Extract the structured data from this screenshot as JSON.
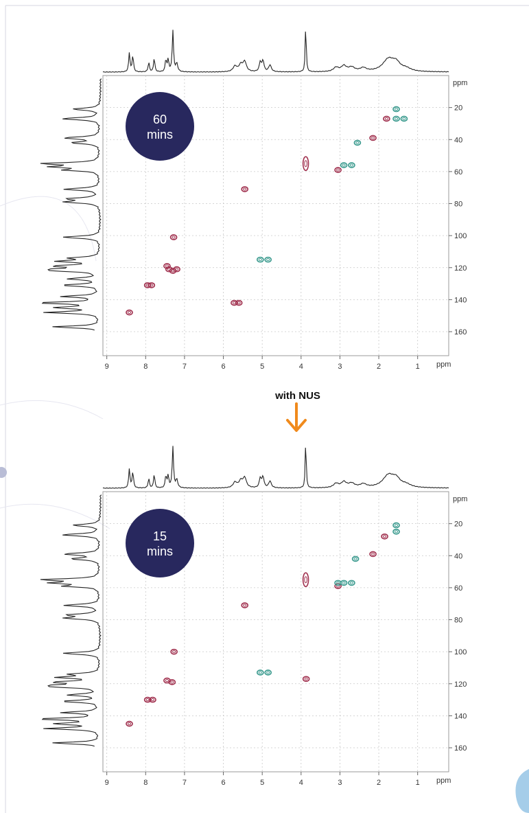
{
  "colors": {
    "badge": "#28285e",
    "negative_contour": "#a0304e",
    "positive_contour": "#3a9a8e",
    "arrow": "#f08a1c",
    "spectrum": "#222222",
    "grid": "#c8c8c8"
  },
  "connector": {
    "label": "with NUS",
    "icon": "arrow-down-icon"
  },
  "chart_data": [
    {
      "type": "scatter",
      "title": "",
      "badge": {
        "line1": "60",
        "line2": "mins"
      },
      "x_axis": {
        "unit": "ppm",
        "range": [
          9.1,
          0.2
        ],
        "reversed": true,
        "ticks": [
          "9",
          "8",
          "7",
          "6",
          "5",
          "4",
          "3",
          "2",
          "1"
        ]
      },
      "y_axis": {
        "unit": "ppm",
        "range": [
          0,
          175
        ],
        "ticks": [
          "20",
          "40",
          "60",
          "80",
          "100",
          "120",
          "140",
          "160"
        ]
      },
      "grid": true,
      "series": [
        {
          "phase": "negative",
          "points": [
            {
              "x": 8.42,
              "y": 148
            },
            {
              "x": 7.95,
              "y": 131
            },
            {
              "x": 7.85,
              "y": 131
            },
            {
              "x": 7.45,
              "y": 119
            },
            {
              "x": 7.4,
              "y": 121
            },
            {
              "x": 7.3,
              "y": 122
            },
            {
              "x": 7.2,
              "y": 121
            },
            {
              "x": 7.28,
              "y": 101
            },
            {
              "x": 5.72,
              "y": 142
            },
            {
              "x": 5.6,
              "y": 142
            },
            {
              "x": 5.45,
              "y": 71
            },
            {
              "x": 3.88,
              "y": 55
            },
            {
              "x": 3.05,
              "y": 59
            },
            {
              "x": 2.15,
              "y": 39
            },
            {
              "x": 1.8,
              "y": 27
            }
          ]
        },
        {
          "phase": "positive",
          "points": [
            {
              "x": 5.05,
              "y": 115
            },
            {
              "x": 4.85,
              "y": 115
            },
            {
              "x": 2.9,
              "y": 56
            },
            {
              "x": 2.7,
              "y": 56
            },
            {
              "x": 2.55,
              "y": 42
            },
            {
              "x": 1.55,
              "y": 21
            },
            {
              "x": 1.55,
              "y": 27
            },
            {
              "x": 1.35,
              "y": 27
            }
          ]
        }
      ]
    },
    {
      "type": "scatter",
      "title": "",
      "badge": {
        "line1": "15",
        "line2": "mins"
      },
      "x_axis": {
        "unit": "ppm",
        "range": [
          9.1,
          0.2
        ],
        "reversed": true,
        "ticks": [
          "9",
          "8",
          "7",
          "6",
          "5",
          "4",
          "3",
          "2",
          "1"
        ]
      },
      "y_axis": {
        "unit": "ppm",
        "range": [
          0,
          175
        ],
        "ticks": [
          "20",
          "40",
          "60",
          "80",
          "100",
          "120",
          "140",
          "160"
        ]
      },
      "grid": true,
      "series": [
        {
          "phase": "negative",
          "points": [
            {
              "x": 8.42,
              "y": 145
            },
            {
              "x": 7.95,
              "y": 130
            },
            {
              "x": 7.82,
              "y": 130
            },
            {
              "x": 7.45,
              "y": 118
            },
            {
              "x": 7.32,
              "y": 119
            },
            {
              "x": 7.27,
              "y": 100
            },
            {
              "x": 5.45,
              "y": 71
            },
            {
              "x": 3.88,
              "y": 55
            },
            {
              "x": 3.87,
              "y": 117
            },
            {
              "x": 3.05,
              "y": 59
            },
            {
              "x": 2.15,
              "y": 39
            },
            {
              "x": 1.85,
              "y": 28
            }
          ]
        },
        {
          "phase": "positive",
          "points": [
            {
              "x": 5.05,
              "y": 113
            },
            {
              "x": 4.85,
              "y": 113
            },
            {
              "x": 2.6,
              "y": 42
            },
            {
              "x": 3.05,
              "y": 57
            },
            {
              "x": 2.9,
              "y": 57
            },
            {
              "x": 2.7,
              "y": 57
            },
            {
              "x": 1.55,
              "y": 21
            },
            {
              "x": 1.55,
              "y": 25
            }
          ]
        }
      ]
    }
  ]
}
